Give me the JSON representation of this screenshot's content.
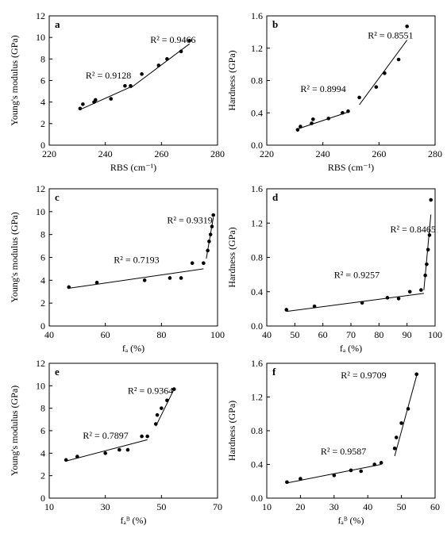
{
  "chart_data": [
    {
      "id": "a",
      "type": "scatter",
      "panel_letter": "a",
      "xlabel": "RBS (cm⁻¹)",
      "ylabel": "Young's modulus (GPa)",
      "xlim": [
        220,
        280
      ],
      "ylim": [
        0,
        12
      ],
      "xticks": [
        220,
        240,
        260,
        280
      ],
      "yticks": [
        0,
        2,
        4,
        6,
        8,
        10,
        12
      ],
      "series": [
        {
          "points": [
            [
              231,
              3.4
            ],
            [
              232,
              3.8
            ],
            [
              236,
              4.0
            ],
            [
              236.5,
              4.2
            ],
            [
              242,
              4.3
            ],
            [
              247,
              5.5
            ],
            [
              249,
              5.5
            ],
            [
              253,
              6.6
            ],
            [
              259,
              7.4
            ],
            [
              262,
              8.0
            ],
            [
              267,
              8.7
            ],
            [
              270,
              9.7
            ]
          ]
        }
      ],
      "fits": [
        {
          "x": [
            231,
            249
          ],
          "y": [
            3.3,
            5.4
          ],
          "r2": "R² = 0.9128",
          "label_at": [
            233,
            6.2
          ]
        },
        {
          "x": [
            249,
            270
          ],
          "y": [
            5.3,
            9.4
          ],
          "r2": "R² = 0.9466",
          "label_at": [
            256,
            9.5
          ]
        }
      ]
    },
    {
      "id": "b",
      "type": "scatter",
      "panel_letter": "b",
      "xlabel": "RBS (cm⁻¹)",
      "ylabel": "Hardness (GPa)",
      "xlim": [
        220,
        280
      ],
      "ylim": [
        0,
        1.6
      ],
      "xticks": [
        220,
        240,
        260,
        280
      ],
      "yticks": [
        0,
        0.4,
        0.8,
        1.2,
        1.6
      ],
      "series": [
        {
          "points": [
            [
              231,
              0.19
            ],
            [
              232,
              0.23
            ],
            [
              236,
              0.27
            ],
            [
              236.5,
              0.32
            ],
            [
              242,
              0.33
            ],
            [
              247,
              0.4
            ],
            [
              249,
              0.42
            ],
            [
              253,
              0.59
            ],
            [
              259,
              0.72
            ],
            [
              262,
              0.89
            ],
            [
              267,
              1.06
            ],
            [
              270,
              1.47
            ]
          ]
        }
      ],
      "fits": [
        {
          "x": [
            231,
            249
          ],
          "y": [
            0.2,
            0.41
          ],
          "r2": "R² = 0.8994",
          "label_at": [
            232,
            0.66
          ]
        },
        {
          "x": [
            253,
            270
          ],
          "y": [
            0.5,
            1.3
          ],
          "r2": "R² = 0.8551",
          "label_at": [
            256,
            1.32
          ]
        }
      ]
    },
    {
      "id": "c",
      "type": "scatter",
      "panel_letter": "c",
      "xlabel": "fₐ (%)",
      "ylabel": "Young's modulus (GPa)",
      "xlim": [
        40,
        100
      ],
      "ylim": [
        0,
        12
      ],
      "xticks": [
        40,
        60,
        80,
        100
      ],
      "yticks": [
        0,
        2,
        4,
        6,
        8,
        10,
        12
      ],
      "series": [
        {
          "points": [
            [
              47,
              3.4
            ],
            [
              57,
              3.8
            ],
            [
              74,
              4.0
            ],
            [
              83,
              4.2
            ],
            [
              87,
              4.2
            ],
            [
              91,
              5.5
            ],
            [
              95,
              5.5
            ],
            [
              96.5,
              6.6
            ],
            [
              97,
              7.4
            ],
            [
              97.5,
              8.0
            ],
            [
              98,
              8.7
            ],
            [
              98.5,
              9.7
            ]
          ]
        }
      ],
      "fits": [
        {
          "x": [
            47,
            95
          ],
          "y": [
            3.3,
            5.0
          ],
          "r2": "R² = 0.7193",
          "label_at": [
            63,
            5.5
          ]
        },
        {
          "x": [
            96,
            98.5
          ],
          "y": [
            5.9,
            9.5
          ],
          "r2": "R² = 0.9319",
          "label_at": [
            82,
            9.0
          ]
        }
      ]
    },
    {
      "id": "d",
      "type": "scatter",
      "panel_letter": "d",
      "xlabel": "fₐ (%)",
      "ylabel": "Hardness (GPa)",
      "xlim": [
        40,
        100
      ],
      "ylim": [
        0,
        1.6
      ],
      "xticks": [
        40,
        50,
        60,
        70,
        80,
        90,
        100
      ],
      "yticks": [
        0,
        0.4,
        0.8,
        1.2,
        1.6
      ],
      "series": [
        {
          "points": [
            [
              47,
              0.19
            ],
            [
              57,
              0.23
            ],
            [
              74,
              0.27
            ],
            [
              83,
              0.33
            ],
            [
              87,
              0.32
            ],
            [
              91,
              0.4
            ],
            [
              95,
              0.42
            ],
            [
              96.5,
              0.59
            ],
            [
              97,
              0.72
            ],
            [
              97.5,
              0.89
            ],
            [
              98,
              1.06
            ],
            [
              98.5,
              1.47
            ]
          ]
        }
      ],
      "fits": [
        {
          "x": [
            47,
            96
          ],
          "y": [
            0.17,
            0.38
          ],
          "r2": "R² = 0.9257",
          "label_at": [
            64,
            0.56
          ]
        },
        {
          "x": [
            96,
            98.5
          ],
          "y": [
            0.42,
            1.3
          ],
          "r2": "R² = 0.8465",
          "label_at": [
            84,
            1.09
          ]
        }
      ]
    },
    {
      "id": "e",
      "type": "scatter",
      "panel_letter": "e",
      "xlabel": "fₐᴮ (%)",
      "ylabel": "Young's modulus (GPa)",
      "xlim": [
        10,
        70
      ],
      "ylim": [
        0,
        12
      ],
      "xticks": [
        10,
        30,
        50,
        70
      ],
      "yticks": [
        0,
        2,
        4,
        6,
        8,
        10,
        12
      ],
      "series": [
        {
          "points": [
            [
              16,
              3.4
            ],
            [
              20,
              3.7
            ],
            [
              30,
              4.0
            ],
            [
              35,
              4.3
            ],
            [
              38,
              4.3
            ],
            [
              43,
              5.5
            ],
            [
              45,
              5.5
            ],
            [
              48,
              6.6
            ],
            [
              48.5,
              7.4
            ],
            [
              50,
              8.0
            ],
            [
              52,
              8.7
            ],
            [
              54.5,
              9.7
            ]
          ]
        }
      ],
      "fits": [
        {
          "x": [
            16,
            45
          ],
          "y": [
            3.3,
            5.2
          ],
          "r2": "R² = 0.7897",
          "label_at": [
            22,
            5.3
          ]
        },
        {
          "x": [
            48,
            54.5
          ],
          "y": [
            6.4,
            9.7
          ],
          "r2": "R² = 0.9364",
          "label_at": [
            38,
            9.3
          ]
        }
      ]
    },
    {
      "id": "f",
      "type": "scatter",
      "panel_letter": "f",
      "xlabel": "fₐᴮ (%)",
      "ylabel": "Hardness (GPa)",
      "xlim": [
        10,
        60
      ],
      "ylim": [
        0,
        1.6
      ],
      "xticks": [
        10,
        20,
        30,
        40,
        50,
        60
      ],
      "yticks": [
        0,
        0.4,
        0.8,
        1.2,
        1.6
      ],
      "series": [
        {
          "points": [
            [
              16,
              0.19
            ],
            [
              20,
              0.23
            ],
            [
              30,
              0.27
            ],
            [
              35,
              0.33
            ],
            [
              38,
              0.32
            ],
            [
              42,
              0.4
            ],
            [
              44,
              0.42
            ],
            [
              48,
              0.59
            ],
            [
              48.5,
              0.72
            ],
            [
              50,
              0.89
            ],
            [
              52,
              1.06
            ],
            [
              54.5,
              1.47
            ]
          ]
        }
      ],
      "fits": [
        {
          "x": [
            16,
            44
          ],
          "y": [
            0.18,
            0.4
          ],
          "r2": "R² = 0.9587",
          "label_at": [
            26,
            0.52
          ]
        },
        {
          "x": [
            48,
            54.5
          ],
          "y": [
            0.5,
            1.45
          ],
          "r2": "R² = 0.9709",
          "label_at": [
            32,
            1.42
          ]
        }
      ]
    }
  ]
}
